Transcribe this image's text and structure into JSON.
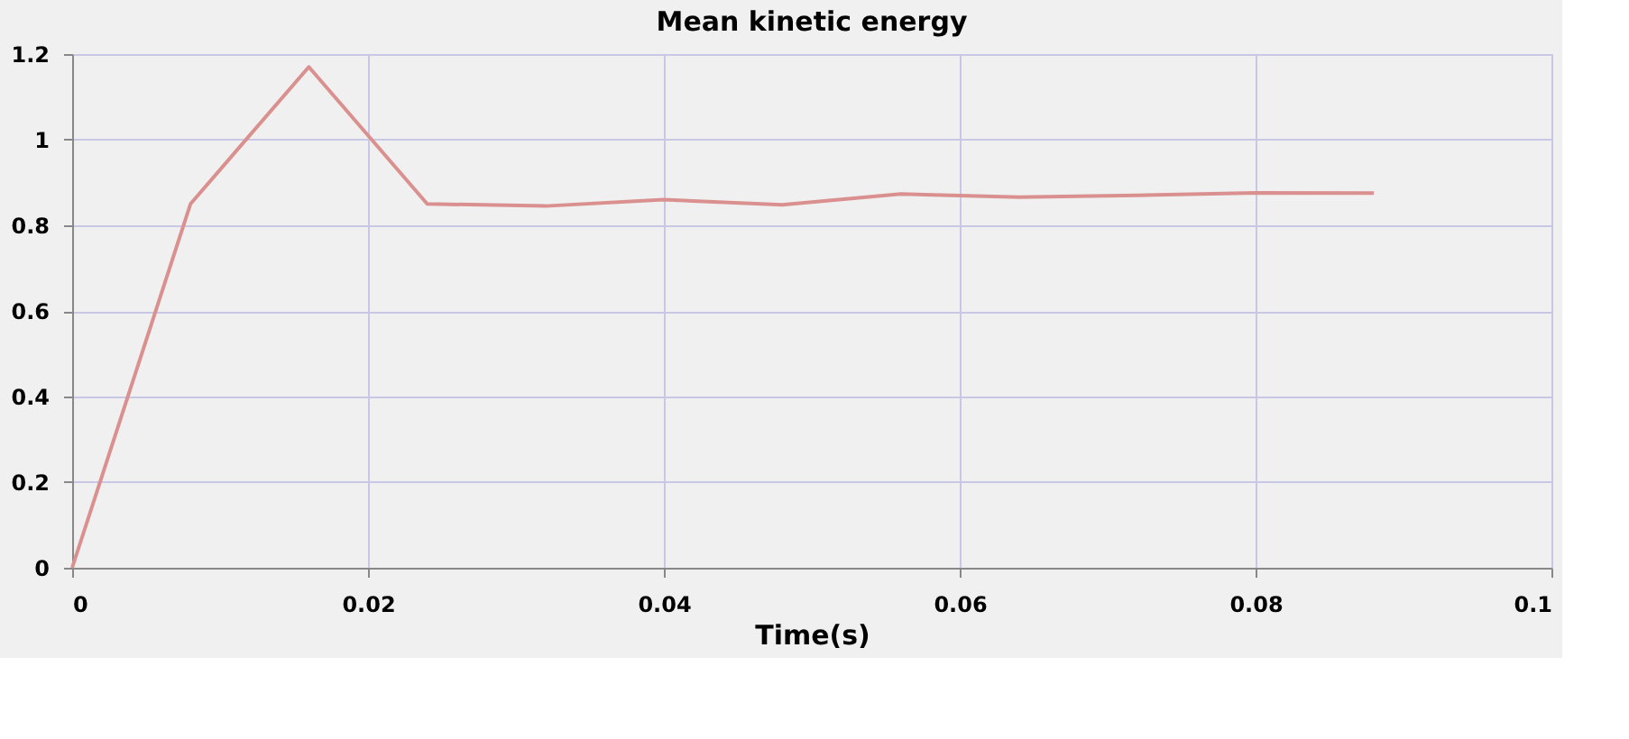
{
  "chart_data": {
    "type": "line",
    "title": "Mean kinetic energy",
    "xlabel": "Time(s)",
    "x": [
      0,
      0.008,
      0.016,
      0.024,
      0.032,
      0.04,
      0.048,
      0.056,
      0.064,
      0.072,
      0.08,
      0.088
    ],
    "series": [
      {
        "color": "#d9908f",
        "values": [
          0,
          0.85,
          1.17,
          0.85,
          0.845,
          0.86,
          0.848,
          0.873,
          0.866,
          0.87,
          0.876,
          0.875
        ]
      }
    ],
    "xlim": [
      0,
      0.1
    ],
    "xticks": [
      0,
      0.02,
      0.04,
      0.06,
      0.08,
      0.1
    ],
    "ylim": [
      0,
      1.2
    ],
    "yticks": [
      0,
      0.2,
      0.4,
      0.6,
      0.8,
      1,
      1.2
    ],
    "grid": true,
    "line_style": "solid"
  }
}
